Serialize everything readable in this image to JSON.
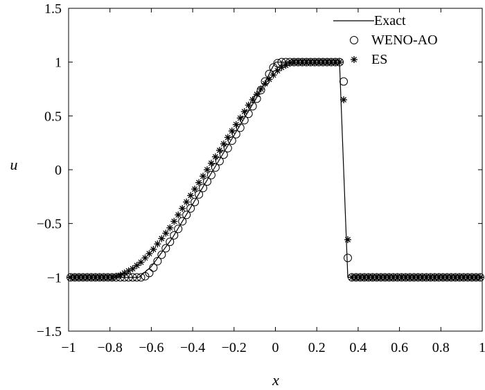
{
  "chart_data": {
    "type": "line",
    "title": "",
    "xlabel": "x",
    "ylabel": "u",
    "xlim": [
      -1,
      1
    ],
    "ylim": [
      -1.5,
      1.5
    ],
    "xticks": [
      "−1",
      "−0.8",
      "−0.6",
      "−0.4",
      "−0.2",
      "0",
      "0.2",
      "0.4",
      "0.6",
      "0.8",
      "1"
    ],
    "yticks": [
      "−1.5",
      "−1",
      "−0.5",
      "0",
      "0.5",
      "1",
      "1.5"
    ],
    "legend_position": "top-right",
    "grid": false,
    "series": [
      {
        "name": "Exact",
        "style": "line",
        "x": [
          -1.0,
          -0.66,
          -0.6,
          -0.5,
          -0.4,
          -0.3,
          -0.2,
          -0.1,
          -0.05,
          -0.02,
          0.0,
          0.31,
          0.33,
          0.35,
          1.0
        ],
        "y": [
          -1.0,
          -1.0,
          -0.9,
          -0.64,
          -0.32,
          0.0,
          0.32,
          0.64,
          0.81,
          0.93,
          1.0,
          1.0,
          0.0,
          -1.0,
          -1.0
        ]
      },
      {
        "name": "WENO-AO",
        "style": "circle",
        "x": [
          -0.99,
          -0.97,
          -0.95,
          -0.93,
          -0.91,
          -0.89,
          -0.87,
          -0.85,
          -0.83,
          -0.81,
          -0.79,
          -0.77,
          -0.75,
          -0.73,
          -0.71,
          -0.69,
          -0.67,
          -0.65,
          -0.63,
          -0.61,
          -0.59,
          -0.57,
          -0.55,
          -0.53,
          -0.51,
          -0.49,
          -0.47,
          -0.45,
          -0.43,
          -0.41,
          -0.39,
          -0.37,
          -0.35,
          -0.33,
          -0.31,
          -0.29,
          -0.27,
          -0.25,
          -0.23,
          -0.21,
          -0.19,
          -0.17,
          -0.15,
          -0.13,
          -0.11,
          -0.09,
          -0.07,
          -0.05,
          -0.03,
          -0.01,
          0.01,
          0.03,
          0.05,
          0.07,
          0.09,
          0.11,
          0.13,
          0.15,
          0.17,
          0.19,
          0.21,
          0.23,
          0.25,
          0.27,
          0.29,
          0.31,
          0.33,
          0.35,
          0.37,
          0.39,
          0.41,
          0.43,
          0.45,
          0.47,
          0.49,
          0.51,
          0.53,
          0.55,
          0.57,
          0.59,
          0.61,
          0.63,
          0.65,
          0.67,
          0.69,
          0.71,
          0.73,
          0.75,
          0.77,
          0.79,
          0.81,
          0.83,
          0.85,
          0.87,
          0.89,
          0.91,
          0.93,
          0.95,
          0.97,
          0.99
        ],
        "y": [
          -1.0,
          -1.0,
          -1.0,
          -1.0,
          -1.0,
          -1.0,
          -1.0,
          -1.0,
          -1.0,
          -1.0,
          -1.0,
          -1.0,
          -1.0,
          -1.0,
          -1.0,
          -1.0,
          -1.0,
          -1.0,
          -0.99,
          -0.96,
          -0.91,
          -0.85,
          -0.79,
          -0.73,
          -0.67,
          -0.61,
          -0.55,
          -0.48,
          -0.42,
          -0.36,
          -0.3,
          -0.23,
          -0.17,
          -0.11,
          -0.05,
          0.02,
          0.08,
          0.14,
          0.2,
          0.27,
          0.33,
          0.39,
          0.46,
          0.52,
          0.59,
          0.66,
          0.74,
          0.82,
          0.89,
          0.95,
          0.99,
          1.0,
          1.0,
          1.0,
          1.0,
          1.0,
          1.0,
          1.0,
          1.0,
          1.0,
          1.0,
          1.0,
          1.0,
          1.0,
          1.0,
          1.0,
          0.82,
          -0.82,
          -1.0,
          -1.0,
          -1.0,
          -1.0,
          -1.0,
          -1.0,
          -1.0,
          -1.0,
          -1.0,
          -1.0,
          -1.0,
          -1.0,
          -1.0,
          -1.0,
          -1.0,
          -1.0,
          -1.0,
          -1.0,
          -1.0,
          -1.0,
          -1.0,
          -1.0,
          -1.0,
          -1.0,
          -1.0,
          -1.0,
          -1.0,
          -1.0,
          -1.0,
          -1.0,
          -1.0,
          -1.0
        ]
      },
      {
        "name": "ES",
        "style": "star",
        "x": [
          -0.99,
          -0.97,
          -0.95,
          -0.93,
          -0.91,
          -0.89,
          -0.87,
          -0.85,
          -0.83,
          -0.81,
          -0.79,
          -0.77,
          -0.75,
          -0.73,
          -0.71,
          -0.69,
          -0.67,
          -0.65,
          -0.63,
          -0.61,
          -0.59,
          -0.57,
          -0.55,
          -0.53,
          -0.51,
          -0.49,
          -0.47,
          -0.45,
          -0.43,
          -0.41,
          -0.39,
          -0.37,
          -0.35,
          -0.33,
          -0.31,
          -0.29,
          -0.27,
          -0.25,
          -0.23,
          -0.21,
          -0.19,
          -0.17,
          -0.15,
          -0.13,
          -0.11,
          -0.09,
          -0.07,
          -0.05,
          -0.03,
          -0.01,
          0.01,
          0.03,
          0.05,
          0.07,
          0.09,
          0.11,
          0.13,
          0.15,
          0.17,
          0.19,
          0.21,
          0.23,
          0.25,
          0.27,
          0.29,
          0.31,
          0.33,
          0.35,
          0.37,
          0.39,
          0.41,
          0.43,
          0.45,
          0.47,
          0.49,
          0.51,
          0.53,
          0.55,
          0.57,
          0.59,
          0.61,
          0.63,
          0.65,
          0.67,
          0.69,
          0.71,
          0.73,
          0.75,
          0.77,
          0.79,
          0.81,
          0.83,
          0.85,
          0.87,
          0.89,
          0.91,
          0.93,
          0.95,
          0.97,
          0.99
        ],
        "y": [
          -1.0,
          -1.0,
          -1.0,
          -1.0,
          -1.0,
          -1.0,
          -1.0,
          -1.0,
          -1.0,
          -1.0,
          -1.0,
          -0.99,
          -0.98,
          -0.96,
          -0.94,
          -0.92,
          -0.89,
          -0.86,
          -0.82,
          -0.78,
          -0.74,
          -0.69,
          -0.64,
          -0.59,
          -0.54,
          -0.48,
          -0.42,
          -0.36,
          -0.3,
          -0.24,
          -0.18,
          -0.12,
          -0.06,
          0.0,
          0.06,
          0.12,
          0.18,
          0.24,
          0.3,
          0.36,
          0.42,
          0.48,
          0.54,
          0.6,
          0.65,
          0.7,
          0.75,
          0.8,
          0.84,
          0.88,
          0.92,
          0.95,
          0.97,
          0.99,
          1.0,
          1.0,
          1.0,
          1.0,
          1.0,
          1.0,
          1.0,
          1.0,
          1.0,
          1.0,
          1.0,
          1.0,
          0.65,
          -0.65,
          -1.0,
          -1.0,
          -1.0,
          -1.0,
          -1.0,
          -1.0,
          -1.0,
          -1.0,
          -1.0,
          -1.0,
          -1.0,
          -1.0,
          -1.0,
          -1.0,
          -1.0,
          -1.0,
          -1.0,
          -1.0,
          -1.0,
          -1.0,
          -1.0,
          -1.0,
          -1.0,
          -1.0,
          -1.0,
          -1.0,
          -1.0,
          -1.0,
          -1.0,
          -1.0,
          -1.0,
          -1.0
        ]
      }
    ]
  }
}
